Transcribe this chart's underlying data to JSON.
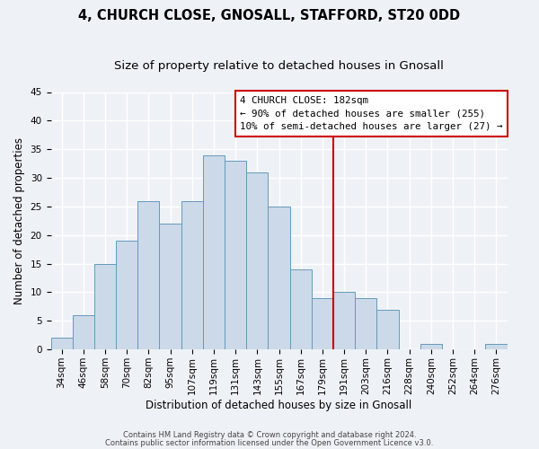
{
  "title": "4, CHURCH CLOSE, GNOSALL, STAFFORD, ST20 0DD",
  "subtitle": "Size of property relative to detached houses in Gnosall",
  "xlabel": "Distribution of detached houses by size in Gnosall",
  "ylabel": "Number of detached properties",
  "bin_labels": [
    "34sqm",
    "46sqm",
    "58sqm",
    "70sqm",
    "82sqm",
    "95sqm",
    "107sqm",
    "119sqm",
    "131sqm",
    "143sqm",
    "155sqm",
    "167sqm",
    "179sqm",
    "191sqm",
    "203sqm",
    "216sqm",
    "228sqm",
    "240sqm",
    "252sqm",
    "264sqm",
    "276sqm"
  ],
  "bin_values": [
    2,
    6,
    15,
    19,
    26,
    22,
    26,
    34,
    33,
    31,
    25,
    14,
    9,
    10,
    9,
    7,
    0,
    1,
    0,
    0,
    1
  ],
  "bar_color": "#ccd9e8",
  "bar_edge_color": "#6699bb",
  "vline_x_idx": 13,
  "vline_color": "#cc0000",
  "ylim": [
    0,
    45
  ],
  "yticks": [
    0,
    5,
    10,
    15,
    20,
    25,
    30,
    35,
    40,
    45
  ],
  "annotation_title": "4 CHURCH CLOSE: 182sqm",
  "annotation_line1": "← 90% of detached houses are smaller (255)",
  "annotation_line2": "10% of semi-detached houses are larger (27) →",
  "footer1": "Contains HM Land Registry data © Crown copyright and database right 2024.",
  "footer2": "Contains public sector information licensed under the Open Government Licence v3.0.",
  "title_fontsize": 10.5,
  "subtitle_fontsize": 9.5,
  "axis_label_fontsize": 8.5,
  "tick_fontsize": 7.5,
  "background_color": "#eef2f7",
  "grid_color": "#ffffff"
}
